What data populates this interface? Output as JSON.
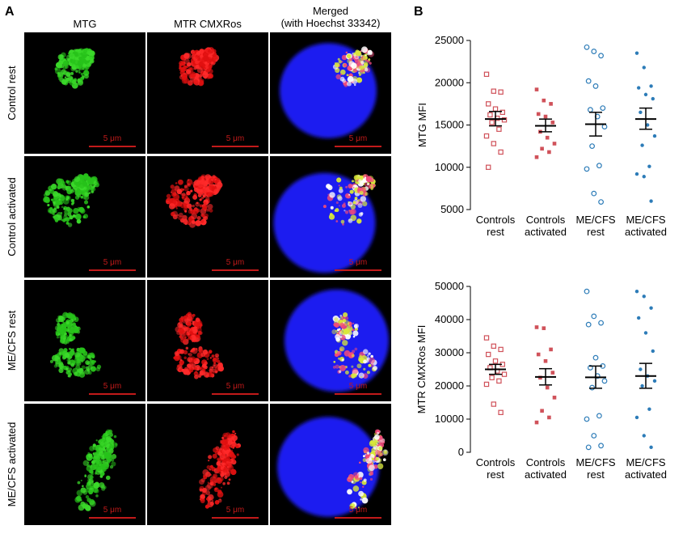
{
  "panelA": {
    "letter": "A",
    "columns": [
      "MTG",
      "MTR CMXRos",
      "Merged\n(with Hoechst 33342)"
    ],
    "rows": [
      "Control rest",
      "Control activated",
      "ME/CFS rest",
      "ME/CFS activated"
    ],
    "scale_label": "5 μm"
  },
  "panelB": {
    "letter": "B",
    "chart_data": [
      {
        "type": "scatter",
        "ylabel": "MTG MFI",
        "xlabel": "",
        "ylim": [
          5000,
          25000
        ],
        "yticks": [
          5000,
          10000,
          15000,
          20000,
          25000
        ],
        "categories": [
          "Controls\nrest",
          "Controls\nactivated",
          "ME/CFS\nrest",
          "ME/CFS\nactivated"
        ],
        "series": [
          {
            "values": [
              21000,
              19000,
              18900,
              17500,
              16900,
              16500,
              16200,
              15800,
              15600,
              15300,
              14500,
              13700,
              12800,
              11800,
              10000
            ],
            "mean": 15700,
            "sem_low": 14900,
            "sem_high": 16600
          },
          {
            "values": [
              19200,
              17900,
              17500,
              16300,
              16000,
              15300,
              14200,
              13500,
              12800,
              12200,
              11800,
              11200
            ],
            "mean": 14900,
            "sem_low": 14200,
            "sem_high": 15700
          },
          {
            "values": [
              24200,
              23700,
              23200,
              20200,
              19600,
              17000,
              16800,
              16000,
              14800,
              12500,
              10200,
              9800,
              6900,
              5900
            ],
            "mean": 15100,
            "sem_low": 13700,
            "sem_high": 16500
          },
          {
            "values": [
              23500,
              21800,
              19600,
              19400,
              18600,
              18100,
              16500,
              15000,
              13700,
              12600,
              10100,
              9200,
              8900,
              6000
            ],
            "mean": 15700,
            "sem_low": 14500,
            "sem_high": 17000
          }
        ],
        "colors": [
          "#d0525a",
          "#d0525a",
          "#2d7cb8",
          "#2d7cb8"
        ]
      },
      {
        "type": "scatter",
        "ylabel": "MTR CMXRos MFI",
        "xlabel": "",
        "ylim": [
          0,
          50000
        ],
        "yticks": [
          0,
          10000,
          20000,
          30000,
          40000,
          50000
        ],
        "categories": [
          "Controls\nrest",
          "Controls\nactivated",
          "ME/CFS\nrest",
          "ME/CFS\nactivated"
        ],
        "series": [
          {
            "values": [
              34500,
              32000,
              31000,
              29500,
              27500,
              26500,
              25500,
              24500,
              23500,
              22500,
              21500,
              20500,
              14500,
              12000
            ],
            "mean": 25000,
            "sem_low": 23500,
            "sem_high": 26500
          },
          {
            "values": [
              37700,
              37400,
              31000,
              29500,
              27500,
              24000,
              22500,
              19500,
              16500,
              12500,
              10500,
              9000
            ],
            "mean": 22700,
            "sem_low": 20300,
            "sem_high": 25200
          },
          {
            "values": [
              48500,
              41000,
              39000,
              38500,
              28500,
              26000,
              25500,
              23000,
              21500,
              19500,
              11000,
              10000,
              5000,
              2000,
              1500
            ],
            "mean": 22600,
            "sem_low": 19300,
            "sem_high": 26000
          },
          {
            "values": [
              48500,
              47000,
              43500,
              40500,
              36000,
              30500,
              25000,
              23000,
              21500,
              20000,
              13000,
              10500,
              5000,
              1500
            ],
            "mean": 23000,
            "sem_low": 19300,
            "sem_high": 26800
          }
        ],
        "colors": [
          "#d0525a",
          "#d0525a",
          "#2d7cb8",
          "#2d7cb8"
        ]
      }
    ]
  }
}
